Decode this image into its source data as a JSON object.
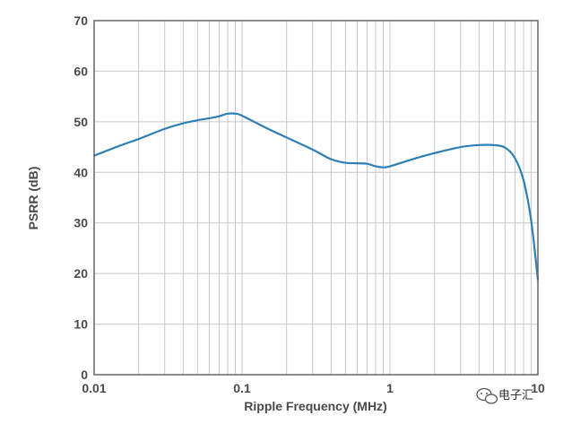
{
  "chart_data": {
    "type": "line",
    "xlabel": "Ripple Frequency (MHz)",
    "ylabel": "PSRR (dB)",
    "x_scale": "log",
    "xlim": [
      0.01,
      10
    ],
    "ylim": [
      0,
      70
    ],
    "x_ticks": [
      0.01,
      0.1,
      1,
      10
    ],
    "x_tick_labels": [
      "0.01",
      "0.1",
      "1",
      "10"
    ],
    "y_ticks": [
      0,
      10,
      20,
      30,
      40,
      50,
      60,
      70
    ],
    "y_tick_labels": [
      "0",
      "10",
      "20",
      "30",
      "40",
      "50",
      "60",
      "70"
    ],
    "grid": true,
    "line_color": "#2e7fb6",
    "series": [
      {
        "x": [
          0.01,
          0.015,
          0.02,
          0.03,
          0.04,
          0.05,
          0.06,
          0.07,
          0.08,
          0.09,
          0.1,
          0.15,
          0.2,
          0.3,
          0.4,
          0.5,
          0.6,
          0.7,
          0.8,
          0.9,
          1.0,
          1.5,
          2,
          3,
          4,
          5,
          6,
          7,
          8,
          9,
          10
        ],
        "y": [
          43.3,
          45.3,
          46.6,
          48.6,
          49.7,
          50.3,
          50.7,
          51.1,
          51.6,
          51.6,
          51.2,
          48.6,
          46.9,
          44.5,
          42.6,
          41.9,
          41.8,
          41.7,
          41.2,
          41.0,
          41.2,
          42.8,
          43.8,
          45.0,
          45.4,
          45.4,
          44.9,
          42.8,
          38.4,
          30.5,
          18.8
        ]
      }
    ]
  },
  "watermark": {
    "text": "电子汇",
    "icon": "wechat-icon"
  }
}
